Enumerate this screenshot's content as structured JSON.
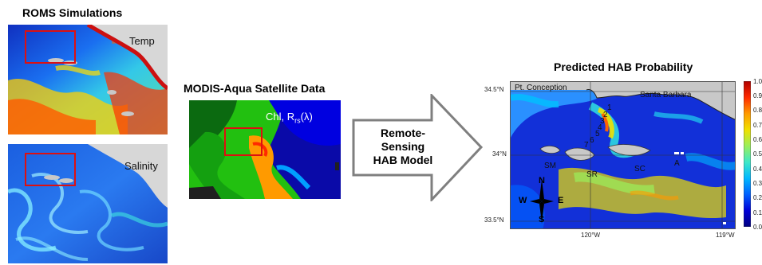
{
  "roms": {
    "title": "ROMS Simulations",
    "temp_label": "Temp",
    "salinity_label": "Salinity"
  },
  "modis": {
    "title": "MODIS-Aqua Satellite Data",
    "label_chl": "Chl, ",
    "label_r": "R",
    "label_sub": "rs",
    "label_lambda": "(λ)"
  },
  "model": {
    "line1": "Remote-",
    "line2": "Sensing",
    "line3": "HAB Model"
  },
  "prediction": {
    "title": "Predicted HAB Probability",
    "lat_ticks": [
      "34.5°N",
      "34°N",
      "33.5°N"
    ],
    "lon_ticks": [
      "120°W",
      "119°W"
    ],
    "places": {
      "pt_conception": "Pt. Conception",
      "santa_barbara": "Santa Barbara",
      "sm": "SM",
      "sr": "SR",
      "sc": "SC",
      "a": "A"
    },
    "stations": [
      "1",
      "2",
      "3",
      "4",
      "5",
      "6",
      "7"
    ],
    "compass": {
      "n": "N",
      "s": "S",
      "e": "E",
      "w": "W"
    },
    "colorbar_ticks": [
      "1.0",
      "0.9",
      "0.8",
      "0.7",
      "0.6",
      "0.5",
      "0.4",
      "0.3",
      "0.2",
      "0.1",
      "0.0"
    ],
    "colorbar_colors": [
      "#b00000",
      "#ff2a00",
      "#ff9a00",
      "#f0e000",
      "#9aef5a",
      "#3ee8c8",
      "#00b8ff",
      "#0060ff",
      "#0000d8",
      "#000080"
    ]
  }
}
